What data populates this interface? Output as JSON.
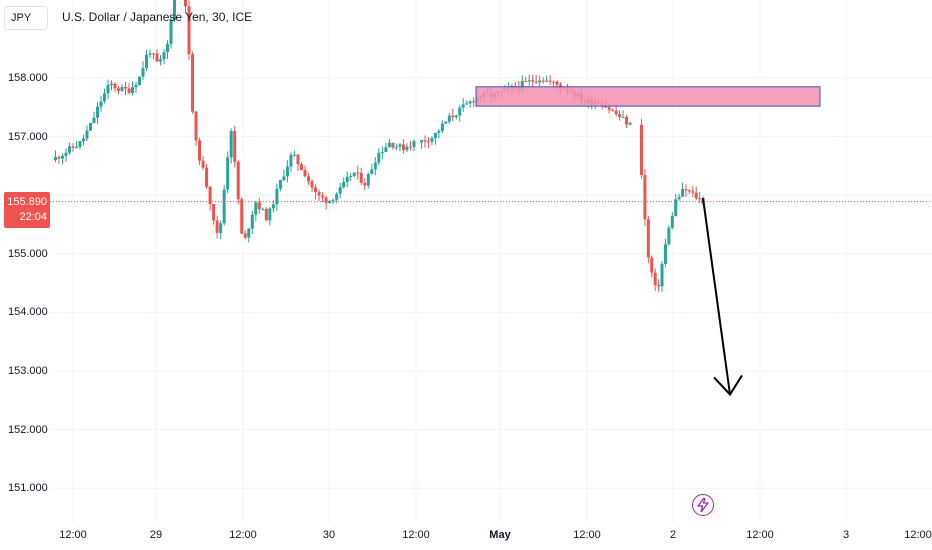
{
  "symbol_box": "JPY",
  "chart_title": "U.S. Dollar / Japanese Yen, 30, ICE",
  "current_price": "155.890",
  "countdown": "22:04",
  "event_icon": "lightning-icon",
  "colors": {
    "up": "#26a69a",
    "down": "#ef5350",
    "zone_fill": "#f48fb1",
    "zone_border": "#3f51b5",
    "arrow": "#000000",
    "grid": "#f0f3fa",
    "event": "#9c27b0"
  },
  "chart_data": {
    "type": "candlestick",
    "title": "U.S. Dollar / Japanese Yen, 30, ICE",
    "ylim": [
      150.5,
      158.9
    ],
    "y_ticks": [
      "158.000",
      "157.000",
      "155.000",
      "154.000",
      "153.000",
      "152.000",
      "151.000"
    ],
    "x_ticks": [
      "12:00",
      "29",
      "12:00",
      "30",
      "12:00",
      "May",
      "12:00",
      "2",
      "12:00",
      "3",
      "12:00"
    ],
    "current_price": 155.89,
    "series": [
      {
        "segment": "Apr 26 - Apr 29",
        "path": [
          156.6,
          156.7,
          156.8,
          156.9,
          157.2,
          157.6,
          157.9,
          157.8,
          157.8,
          158.0,
          158.5,
          158.2,
          158.6,
          160.2
        ]
      },
      {
        "segment": "Apr 29 - Apr 30",
        "path": [
          160.2,
          157.0,
          156.2,
          155.2,
          157.2,
          155.1,
          155.9,
          155.6,
          156.2,
          156.7,
          156.4,
          156.0,
          155.9,
          156.1,
          156.4,
          156.2,
          156.7,
          156.9,
          156.8,
          156.9
        ]
      },
      {
        "segment": "Apr 30 - May 1",
        "path": [
          156.9,
          157.0,
          157.3,
          157.5,
          157.7,
          157.7,
          157.8,
          157.9,
          158.0,
          157.9,
          157.8,
          157.6,
          157.6,
          157.4,
          157.2
        ]
      },
      {
        "segment": "May 1 - May 2",
        "path": [
          157.2,
          155.0,
          154.3,
          155.2,
          155.9,
          156.1,
          156.0,
          155.9
        ]
      }
    ],
    "annotations": [
      {
        "type": "zone",
        "x_start": "Apr 30 21:30",
        "x_end": "May 2 07:00",
        "y_low": 157.52,
        "y_high": 157.85
      },
      {
        "type": "arrow",
        "from": [
          155.95,
          "May 2 07:00"
        ],
        "to": [
          152.6,
          "May 2 09:30"
        ]
      }
    ]
  }
}
